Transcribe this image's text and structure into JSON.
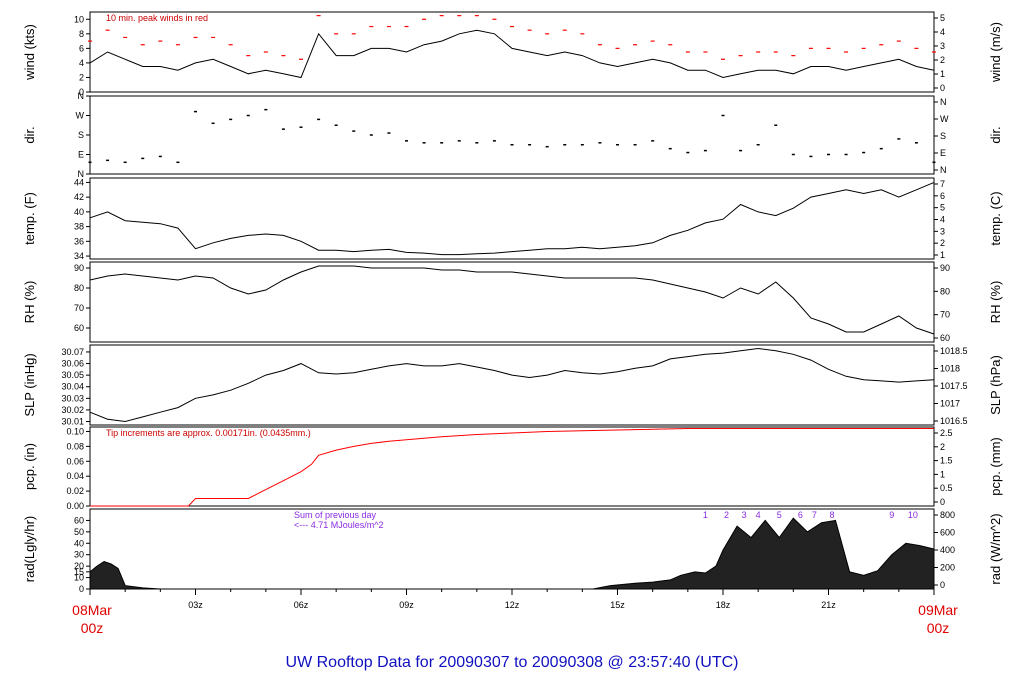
{
  "title": "UW Rooftop Data for 20090307  to  20090308 @ 23:57:40  (UTC)",
  "start_label": [
    "08Mar",
    "00z"
  ],
  "end_label": [
    "09Mar",
    "00z"
  ],
  "x_ticks": [
    "03z",
    "06z",
    "09z",
    "12z",
    "15z",
    "18z",
    "21z"
  ],
  "colors": {
    "data": "#000000",
    "peak": "#ff0000",
    "note_red": "#cc0000",
    "note_purple": "#8a2be2",
    "title": "#1010c0",
    "date": "#e00000"
  },
  "chart_data": [
    {
      "type": "line",
      "name": "wind",
      "ylabel_left": "wind (kts)",
      "ylabel_right": "wind (m/s)",
      "ylim": [
        0,
        11
      ],
      "ticks_left": [
        0,
        2,
        4,
        6,
        8,
        10
      ],
      "ticks_right": [
        "0",
        "1",
        "2",
        "3",
        "4",
        "5"
      ],
      "annotation": "10 min. peak winds in red",
      "x_hours": [
        0,
        0.5,
        1,
        1.5,
        2,
        2.5,
        3,
        3.5,
        4,
        4.5,
        5,
        5.5,
        6,
        6.5,
        7,
        7.5,
        8,
        8.5,
        9,
        9.5,
        10,
        10.5,
        11,
        11.5,
        12,
        12.5,
        13,
        13.5,
        14,
        14.5,
        15,
        15.5,
        16,
        16.5,
        17,
        17.5,
        18,
        18.5,
        19,
        19.5,
        20,
        20.5,
        21,
        21.5,
        22,
        22.5,
        23,
        23.5,
        24
      ],
      "values": [
        4,
        5.5,
        4.5,
        3.5,
        3.5,
        3,
        4,
        4.5,
        3.5,
        2.5,
        3,
        2.5,
        2,
        8,
        5,
        5,
        6,
        6,
        5.5,
        6.5,
        7,
        8,
        8.5,
        8,
        6,
        5.5,
        5,
        5.5,
        5,
        4,
        3.5,
        4,
        4.5,
        4,
        3,
        3,
        2,
        2.5,
        3,
        3,
        2.5,
        3.5,
        3.5,
        3,
        3.5,
        4,
        4.5,
        3.5,
        3
      ],
      "peaks": [
        7,
        8.5,
        7.5,
        6.5,
        7,
        6.5,
        7.5,
        7.5,
        6.5,
        5,
        5.5,
        5,
        4.5,
        10.5,
        8,
        8,
        9,
        9,
        9,
        10,
        10.5,
        10.5,
        10.5,
        10,
        9,
        8.5,
        8,
        8.5,
        8,
        6.5,
        6,
        6.5,
        7,
        6.5,
        5.5,
        5.5,
        4.5,
        5,
        5.5,
        5.5,
        5,
        6,
        6,
        5.5,
        6,
        6.5,
        7,
        6,
        5.5
      ]
    },
    {
      "type": "scatter",
      "name": "dir",
      "ylabel_left": "dir.",
      "ylabel_right": "dir.",
      "ylim": [
        0,
        4
      ],
      "ticks_left": [
        "N",
        "E",
        "S",
        "W",
        "N"
      ],
      "ticks_right": [
        "N",
        "E",
        "S",
        "W",
        "N"
      ],
      "x_hours": [
        0,
        0.5,
        1,
        1.5,
        2,
        2.5,
        3,
        3.5,
        4,
        4.5,
        5,
        5.5,
        6,
        6.5,
        7,
        7.5,
        8,
        8.5,
        9,
        9.5,
        10,
        10.5,
        11,
        11.5,
        12,
        12.5,
        13,
        13.5,
        14,
        14.5,
        15,
        15.5,
        16,
        16.5,
        17,
        17.5,
        18,
        18.5,
        19,
        19.5,
        20,
        20.5,
        21,
        21.5,
        22,
        22.5,
        23,
        23.5,
        24
      ],
      "values": [
        0.6,
        0.7,
        0.6,
        0.8,
        0.9,
        0.6,
        3.2,
        2.6,
        2.8,
        3.0,
        3.3,
        2.3,
        2.4,
        2.8,
        2.5,
        2.2,
        2.0,
        2.1,
        1.7,
        1.6,
        1.6,
        1.7,
        1.6,
        1.7,
        1.5,
        1.5,
        1.4,
        1.5,
        1.5,
        1.6,
        1.5,
        1.5,
        1.7,
        1.3,
        1.1,
        1.2,
        3.0,
        1.2,
        1.5,
        2.5,
        1.0,
        0.9,
        1.0,
        1.0,
        1.1,
        1.3,
        1.8,
        1.6,
        0.6
      ]
    },
    {
      "type": "line",
      "name": "temp",
      "ylabel_left": "temp. (F)",
      "ylabel_right": "temp. (C)",
      "ylim": [
        33.6,
        44.6
      ],
      "ticks_left": [
        34,
        36,
        38,
        40,
        42,
        44
      ],
      "ticks_right": [
        "1",
        "2",
        "3",
        "4",
        "5",
        "6",
        "7"
      ],
      "x_hours": [
        0,
        0.5,
        1,
        1.5,
        2,
        2.5,
        3,
        3.5,
        4,
        4.5,
        5,
        5.5,
        6,
        6.5,
        7,
        7.5,
        8,
        8.5,
        9,
        9.5,
        10,
        10.5,
        11,
        11.5,
        12,
        12.5,
        13,
        13.5,
        14,
        14.5,
        15,
        15.5,
        16,
        16.5,
        17,
        17.5,
        18,
        18.5,
        19,
        19.5,
        20,
        20.5,
        21,
        21.5,
        22,
        22.5,
        23,
        23.5,
        24
      ],
      "values": [
        39.2,
        40.0,
        38.8,
        38.6,
        38.4,
        37.8,
        35.0,
        35.8,
        36.4,
        36.8,
        37.0,
        36.8,
        36.0,
        34.8,
        34.8,
        34.6,
        34.8,
        34.9,
        34.5,
        34.4,
        34.2,
        34.2,
        34.3,
        34.4,
        34.6,
        34.8,
        35.0,
        35.0,
        35.2,
        35.0,
        35.2,
        35.4,
        35.8,
        36.8,
        37.5,
        38.5,
        39.0,
        41.0,
        40.0,
        39.5,
        40.5,
        42.0,
        42.5,
        43.0,
        42.5,
        43.0,
        42.0,
        43.0,
        44.0
      ]
    },
    {
      "type": "line",
      "name": "rh",
      "ylabel_left": "RH (%)",
      "ylabel_right": "RH (%)",
      "ylim": [
        53,
        93
      ],
      "ticks_left": [
        60,
        70,
        80,
        90
      ],
      "ticks_right": [
        "60",
        "70",
        "80",
        "90"
      ],
      "x_hours": [
        0,
        0.5,
        1,
        1.5,
        2,
        2.5,
        3,
        3.5,
        4,
        4.5,
        5,
        5.5,
        6,
        6.5,
        7,
        7.5,
        8,
        8.5,
        9,
        9.5,
        10,
        10.5,
        11,
        11.5,
        12,
        12.5,
        13,
        13.5,
        14,
        14.5,
        15,
        15.5,
        16,
        16.5,
        17,
        17.5,
        18,
        18.5,
        19,
        19.5,
        20,
        20.5,
        21,
        21.5,
        22,
        22.5,
        23,
        23.5,
        24
      ],
      "values": [
        84,
        86,
        87,
        86,
        85,
        84,
        86,
        85,
        80,
        77,
        79,
        84,
        88,
        91,
        91,
        91,
        90,
        90,
        90,
        90,
        89,
        89,
        88,
        88,
        88,
        87,
        86,
        85,
        85,
        85,
        85,
        85,
        84,
        82,
        80,
        78,
        75,
        80,
        77,
        83,
        75,
        65,
        62,
        58,
        58,
        62,
        66,
        60,
        57
      ]
    },
    {
      "type": "line",
      "name": "slp",
      "ylabel_left": "SLP (inHg)",
      "ylabel_right": "SLP (hPa)",
      "ylim": [
        30.007,
        30.076
      ],
      "ticks_left": [
        "30.01",
        "30.02",
        "30.03",
        "30.04",
        "30.05",
        "30.06",
        "30.07"
      ],
      "ticks_right": [
        "1016.5",
        "1017",
        "1017.5",
        "1018",
        "1018.5"
      ],
      "x_hours": [
        0,
        0.5,
        1,
        1.5,
        2,
        2.5,
        3,
        3.5,
        4,
        4.5,
        5,
        5.5,
        6,
        6.5,
        7,
        7.5,
        8,
        8.5,
        9,
        9.5,
        10,
        10.5,
        11,
        11.5,
        12,
        12.5,
        13,
        13.5,
        14,
        14.5,
        15,
        15.5,
        16,
        16.5,
        17,
        17.5,
        18,
        18.5,
        19,
        19.5,
        20,
        20.5,
        21,
        21.5,
        22,
        22.5,
        23,
        23.5,
        24
      ],
      "values": [
        30.018,
        30.012,
        30.01,
        30.014,
        30.018,
        30.022,
        30.03,
        30.033,
        30.037,
        30.043,
        30.05,
        30.054,
        30.06,
        30.052,
        30.051,
        30.052,
        30.055,
        30.058,
        30.06,
        30.058,
        30.058,
        30.06,
        30.057,
        30.054,
        30.05,
        30.048,
        30.05,
        30.054,
        30.052,
        30.051,
        30.053,
        30.056,
        30.058,
        30.064,
        30.066,
        30.068,
        30.069,
        30.071,
        30.073,
        30.071,
        30.068,
        30.063,
        30.055,
        30.049,
        30.046,
        30.045,
        30.044,
        30.045,
        30.046
      ]
    },
    {
      "type": "line",
      "name": "pcp",
      "ylabel_left": "pcp. (in)",
      "ylabel_right": "pcp. (mm)",
      "ylim": [
        0,
        0.106
      ],
      "ticks_left": [
        "0.00",
        "0.02",
        "0.04",
        "0.06",
        "0.08",
        "0.10"
      ],
      "ticks_right": [
        "0",
        "0.5",
        "1",
        "1.5",
        "2",
        "2.5"
      ],
      "annotation": "Tip increments are approx. 0.00171in. (0.0435mm.)",
      "x_hours": [
        0,
        0.5,
        1,
        1.5,
        2,
        2.5,
        2.8,
        3,
        3.5,
        4,
        4.5,
        5,
        5.5,
        6,
        6.3,
        6.5,
        7,
        7.5,
        8,
        8.5,
        9,
        9.5,
        10,
        11,
        12,
        13,
        14,
        15,
        16,
        17,
        18,
        20,
        22,
        24
      ],
      "values": [
        0.0,
        0.0,
        0.0,
        0.0,
        0.0,
        0.0,
        0.0,
        0.01,
        0.01,
        0.01,
        0.01,
        0.022,
        0.034,
        0.046,
        0.056,
        0.068,
        0.075,
        0.08,
        0.084,
        0.087,
        0.089,
        0.091,
        0.093,
        0.096,
        0.098,
        0.1,
        0.101,
        0.102,
        0.103,
        0.104,
        0.104,
        0.104,
        0.104,
        0.104
      ]
    },
    {
      "type": "area",
      "name": "rad",
      "ylabel_left": "rad(Lgly/hr)",
      "ylabel_right": "rad (W/m^2)",
      "ylim": [
        0,
        70
      ],
      "ticks_left": [
        0,
        10,
        15,
        20,
        30,
        40,
        50,
        60
      ],
      "ticks_right": [
        "0",
        "200",
        "400",
        "600",
        "800"
      ],
      "note_lines": [
        "Sum of previous day",
        "<--- 4.71 MJoules/m^2"
      ],
      "hour_labels": [
        "1",
        "2",
        "3",
        "4",
        "5",
        "6",
        "7",
        "8",
        "9",
        "10"
      ],
      "x_hours": [
        0,
        0.2,
        0.4,
        0.6,
        0.8,
        1,
        1.5,
        2,
        2.5,
        3,
        13,
        14.3,
        14.8,
        15.5,
        16,
        16.5,
        16.8,
        17.2,
        17.5,
        17.8,
        18,
        18.4,
        18.8,
        19.2,
        19.6,
        20,
        20.4,
        20.8,
        21.2,
        21.6,
        22,
        22.4,
        22.8,
        23.2,
        23.6,
        24
      ],
      "values": [
        15,
        20,
        24,
        22,
        18,
        3,
        1,
        0,
        0,
        0,
        0,
        0,
        3,
        5,
        6,
        8,
        12,
        15,
        14,
        20,
        34,
        55,
        45,
        60,
        45,
        62,
        50,
        58,
        60,
        15,
        12,
        16,
        30,
        40,
        38,
        35
      ]
    }
  ]
}
